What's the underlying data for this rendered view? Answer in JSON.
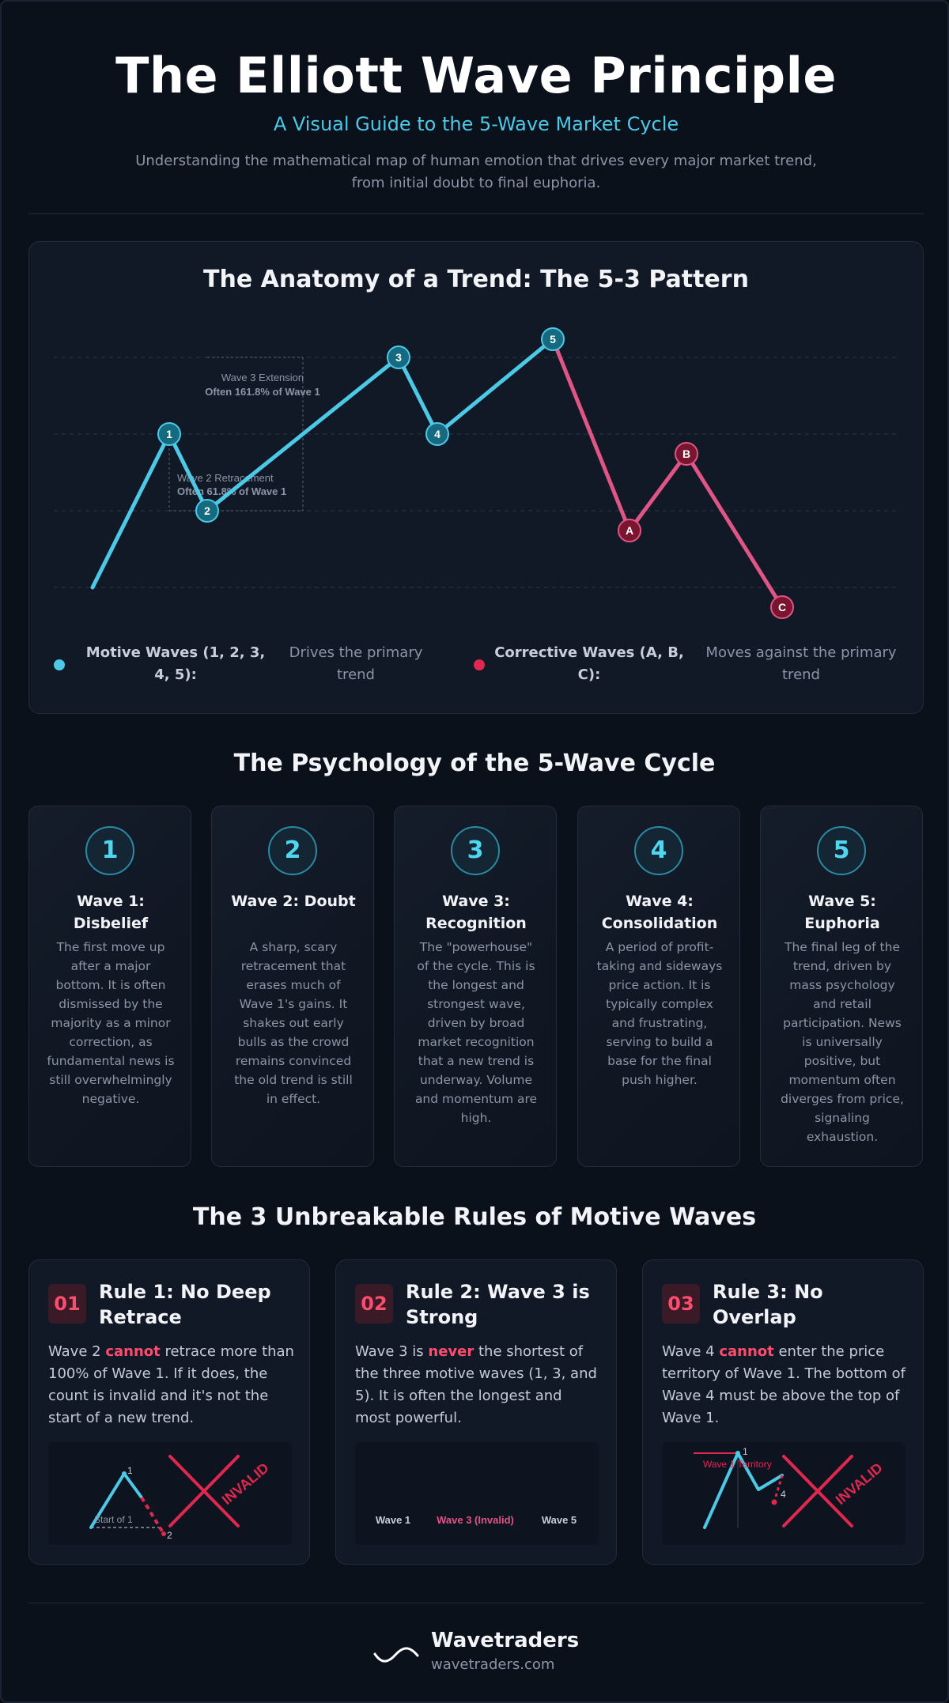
{
  "header": {
    "title": "The Elliott Wave Principle",
    "subtitle": "A Visual Guide to the 5-Wave Market Cycle",
    "intro": "Understanding the mathematical map of human emotion that drives every major market trend, from initial doubt to final euphoria."
  },
  "anatomy": {
    "title": "The Anatomy of a Trend: The 5-3 Pattern",
    "annotation_wave3_title": "Wave 3 Extension",
    "annotation_wave3_value": "Often 161.8% of Wave 1",
    "annotation_wave2_title": "Wave 2 Retracement",
    "annotation_wave2_value": "Often 61.8% of Wave 1",
    "motive_points": [
      "1",
      "2",
      "3",
      "4",
      "5"
    ],
    "corrective_points": [
      "A",
      "B",
      "C"
    ],
    "legend": {
      "motive_label": "Motive Waves (1, 2, 3, 4, 5):",
      "motive_desc": "Drives the primary trend",
      "corrective_label": "Corrective Waves (A, B, C):",
      "corrective_desc": "Moves against the primary trend"
    },
    "colors": {
      "motive": "#4cc9e6",
      "corrective": "#e05585",
      "corrective_dot": "#e0284f"
    }
  },
  "psychology": {
    "title": "The Psychology of the 5-Wave Cycle",
    "cards": [
      {
        "num": "1",
        "title": "Wave 1: Disbelief",
        "body": "The first move up after a major bottom. It is often dismissed by the majority as a minor correction, as fundamental news is still overwhelmingly negative."
      },
      {
        "num": "2",
        "title": "Wave 2: Doubt",
        "body": "A sharp, scary retracement that erases much of Wave 1's gains. It shakes out early bulls as the crowd remains convinced the old trend is still in effect."
      },
      {
        "num": "3",
        "title": "Wave 3: Recognition",
        "body": "The \"powerhouse\" of the cycle. This is the longest and strongest wave, driven by broad market recognition that a new trend is underway. Volume and momentum are high."
      },
      {
        "num": "4",
        "title": "Wave 4: Consolidation",
        "body": "A period of profit-taking and sideways price action. It is typically complex and frustrating, serving to build a base for the final push higher."
      },
      {
        "num": "5",
        "title": "Wave 5: Euphoria",
        "body": "The final leg of the trend, driven by mass psychology and retail participation. News is universally positive, but momentum often diverges from price, signaling exhaustion."
      }
    ]
  },
  "rules": {
    "title": "The 3 Unbreakable Rules of Motive Waves",
    "cards": [
      {
        "num": "01",
        "title": "Rule 1: No Deep Retrace",
        "pre": "Wave 2 ",
        "em": "cannot",
        "post": " retrace more than 100% of Wave 1. If it does, the count is invalid and it's not the start of a new trend."
      },
      {
        "num": "02",
        "title": "Rule 2: Wave 3 is Strong",
        "pre": "Wave 3 is ",
        "em": "never",
        "post": " the shortest of the three motive waves (1, 3, and 5). It is often the longest and most powerful."
      },
      {
        "num": "03",
        "title": "Rule 3: No Overlap",
        "pre": "Wave 4 ",
        "em": "cannot",
        "post": " enter the price territory of Wave 1. The bottom of Wave 4 must be above the top of Wave 1."
      }
    ],
    "viz1": {
      "label_start": "Start of 1",
      "label_1": "1",
      "label_2": "2",
      "invalid": "INVALID"
    },
    "viz2": {
      "bar1": "Wave 1",
      "bar3": "Wave 3 (Invalid)",
      "bar5": "Wave 5"
    },
    "viz3": {
      "territory": "Wave 1 Territory",
      "label_1": "1",
      "label_4": "4",
      "invalid": "INVALID"
    }
  },
  "footer": {
    "brand": "Wavetraders",
    "url": "wavetraders.com"
  }
}
